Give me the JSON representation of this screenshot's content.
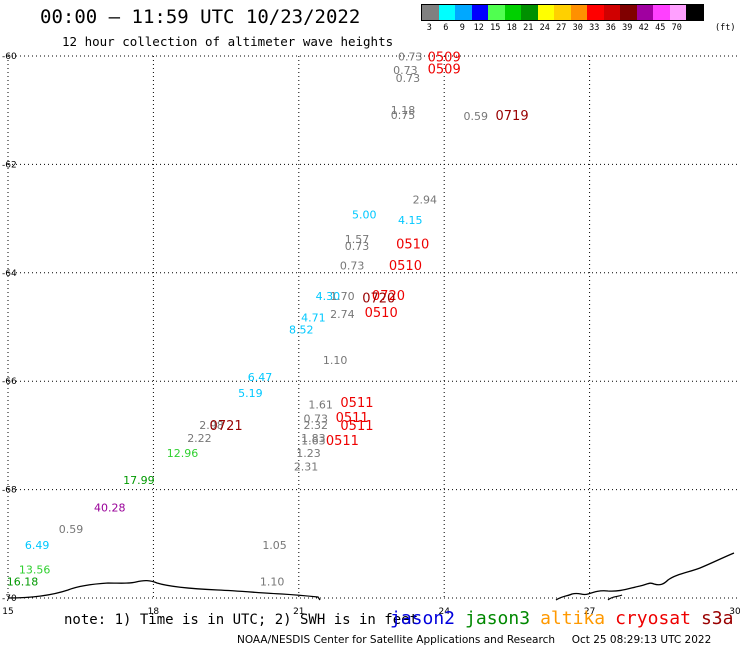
{
  "header": {
    "title": "00:00 – 11:59 UTC 10/23/2022",
    "subtitle": "12 hour collection of altimeter wave heights"
  },
  "legend": {
    "unit": "(ft)",
    "bins": [
      {
        "label": "3",
        "color": "#808080"
      },
      {
        "label": "6",
        "color": "#00ffff"
      },
      {
        "label": "9",
        "color": "#00a8ff"
      },
      {
        "label": "12",
        "color": "#0000ff"
      },
      {
        "label": "15",
        "color": "#50ff50"
      },
      {
        "label": "18",
        "color": "#00d000"
      },
      {
        "label": "21",
        "color": "#009000"
      },
      {
        "label": "24",
        "color": "#ffff00"
      },
      {
        "label": "27",
        "color": "#ffd000"
      },
      {
        "label": "30",
        "color": "#ff9000"
      },
      {
        "label": "33",
        "color": "#ff0000"
      },
      {
        "label": "36",
        "color": "#d00000"
      },
      {
        "label": "39",
        "color": "#800000"
      },
      {
        "label": "42",
        "color": "#a000a0"
      },
      {
        "label": "45",
        "color": "#ff40ff"
      },
      {
        "label": "70",
        "color": "#ffa0ff"
      },
      {
        "label": "",
        "color": "#000000"
      }
    ]
  },
  "axes": {
    "lat_labels": [
      "-60",
      "-62",
      "-64",
      "-66",
      "-68",
      "-70"
    ],
    "lon_labels": [
      "15",
      "18",
      "21",
      "24",
      "27",
      "30"
    ],
    "lat_range": [
      -70,
      -60
    ],
    "lon_range": [
      15,
      30
    ]
  },
  "colors": {
    "gray": "#777777",
    "cyan": "#00c8ff",
    "green": "#30d030",
    "dkgreen": "#009900",
    "purple": "#990099",
    "red": "#ee0000",
    "dkred": "#990000"
  },
  "observations": [
    {
      "text": "0.73",
      "lon": 23.3,
      "lat": -60.08,
      "color": "gray"
    },
    {
      "text": "0.73",
      "lon": 23.2,
      "lat": -60.33,
      "color": "gray"
    },
    {
      "text": "0.73",
      "lon": 23.25,
      "lat": -60.48,
      "color": "gray"
    },
    {
      "text": "1.18",
      "lon": 23.15,
      "lat": -61.07,
      "color": "gray"
    },
    {
      "text": "0.75",
      "lon": 23.15,
      "lat": -61.16,
      "color": "gray"
    },
    {
      "text": "0.59",
      "lon": 24.65,
      "lat": -61.18,
      "color": "gray"
    },
    {
      "text": "2.94",
      "lon": 23.6,
      "lat": -62.72,
      "color": "gray"
    },
    {
      "text": "5.00",
      "lon": 22.35,
      "lat": -63.0,
      "color": "cyan"
    },
    {
      "text": "4.15",
      "lon": 23.3,
      "lat": -63.1,
      "color": "cyan"
    },
    {
      "text": "1.57",
      "lon": 22.2,
      "lat": -63.45,
      "color": "gray"
    },
    {
      "text": "0.73",
      "lon": 22.2,
      "lat": -63.58,
      "color": "gray"
    },
    {
      "text": "0.73",
      "lon": 22.1,
      "lat": -63.94,
      "color": "gray"
    },
    {
      "text": "4.30",
      "lon": 21.6,
      "lat": -64.5,
      "color": "cyan"
    },
    {
      "text": "1.70",
      "lon": 21.9,
      "lat": -64.5,
      "color": "gray"
    },
    {
      "text": "2.74",
      "lon": 21.9,
      "lat": -64.83,
      "color": "gray"
    },
    {
      "text": "4.71",
      "lon": 21.3,
      "lat": -64.9,
      "color": "cyan"
    },
    {
      "text": "8.52",
      "lon": 21.05,
      "lat": -65.12,
      "color": "cyan"
    },
    {
      "text": "1.10",
      "lon": 21.75,
      "lat": -65.68,
      "color": "gray"
    },
    {
      "text": "6.47",
      "lon": 20.2,
      "lat": -66.0,
      "color": "cyan"
    },
    {
      "text": "5.19",
      "lon": 20.0,
      "lat": -66.29,
      "color": "cyan"
    },
    {
      "text": "1.61",
      "lon": 21.45,
      "lat": -66.5,
      "color": "gray"
    },
    {
      "text": "0.73",
      "lon": 21.35,
      "lat": -66.76,
      "color": "gray"
    },
    {
      "text": "2.32",
      "lon": 21.35,
      "lat": -66.88,
      "color": "gray"
    },
    {
      "text": "2.98",
      "lon": 19.2,
      "lat": -66.88,
      "color": "gray"
    },
    {
      "text": "2.22",
      "lon": 18.95,
      "lat": -67.12,
      "color": "gray"
    },
    {
      "text": "1.83",
      "lon": 21.3,
      "lat": -67.12,
      "color": "gray"
    },
    {
      "text": "1.63",
      "lon": 21.3,
      "lat": -67.17,
      "color": "gray"
    },
    {
      "text": "1.23",
      "lon": 21.2,
      "lat": -67.4,
      "color": "gray"
    },
    {
      "text": "12.96",
      "lon": 18.6,
      "lat": -67.4,
      "color": "green"
    },
    {
      "text": "2.31",
      "lon": 21.15,
      "lat": -67.65,
      "color": "gray"
    },
    {
      "text": "17.99",
      "lon": 17.7,
      "lat": -67.9,
      "color": "dkgreen"
    },
    {
      "text": "40.28",
      "lon": 17.1,
      "lat": -68.4,
      "color": "purple"
    },
    {
      "text": "0.59",
      "lon": 16.3,
      "lat": -68.8,
      "color": "gray"
    },
    {
      "text": "1.05",
      "lon": 20.5,
      "lat": -69.1,
      "color": "gray"
    },
    {
      "text": "6.49",
      "lon": 15.6,
      "lat": -69.1,
      "color": "cyan"
    },
    {
      "text": "13.56",
      "lon": 15.55,
      "lat": -69.55,
      "color": "green"
    },
    {
      "text": "16.18",
      "lon": 15.3,
      "lat": -69.77,
      "color": "dkgreen"
    },
    {
      "text": "1.10",
      "lon": 20.45,
      "lat": -69.77,
      "color": "gray"
    }
  ],
  "pass_times": [
    {
      "text": "0509",
      "lon": 24.0,
      "lat": -60.1,
      "color": "red"
    },
    {
      "text": "0509",
      "lon": 24.0,
      "lat": -60.32,
      "color": "red"
    },
    {
      "text": "0719",
      "lon": 25.4,
      "lat": -61.18,
      "color": "dkred"
    },
    {
      "text": "0510",
      "lon": 23.35,
      "lat": -63.55,
      "color": "red"
    },
    {
      "text": "0510",
      "lon": 23.2,
      "lat": -63.95,
      "color": "red"
    },
    {
      "text": "0720",
      "lon": 22.85,
      "lat": -64.5,
      "color": "red"
    },
    {
      "text": "0720",
      "lon": 22.65,
      "lat": -64.55,
      "color": "dkred"
    },
    {
      "text": "0510",
      "lon": 22.7,
      "lat": -64.82,
      "color": "red"
    },
    {
      "text": "0511",
      "lon": 22.2,
      "lat": -66.48,
      "color": "red"
    },
    {
      "text": "0511",
      "lon": 22.1,
      "lat": -66.75,
      "color": "red"
    },
    {
      "text": "0511",
      "lon": 22.2,
      "lat": -66.9,
      "color": "red"
    },
    {
      "text": "0721",
      "lon": 19.5,
      "lat": -66.9,
      "color": "dkred"
    },
    {
      "text": "0511",
      "lon": 21.9,
      "lat": -67.18,
      "color": "red"
    }
  ],
  "footer": {
    "note": "note: 1) Time is in UTC; 2) SWH is in feet",
    "satellites": [
      {
        "name": "jason2",
        "color": "#0000dd"
      },
      {
        "name": "jason3",
        "color": "#008800"
      },
      {
        "name": "altika",
        "color": "#ff9900"
      },
      {
        "name": "cryosat",
        "color": "#ee0000"
      },
      {
        "name": "s3a",
        "color": "#990000"
      }
    ],
    "credit": "NOAA/NESDIS Center for Satellite Applications and Research",
    "timestamp": "Oct 25 08:29:13 UTC 2022"
  }
}
